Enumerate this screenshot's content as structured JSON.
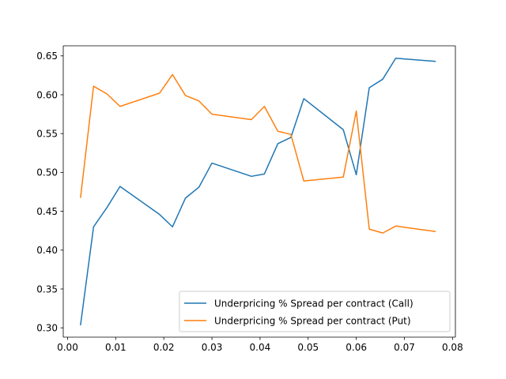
{
  "chart_data": {
    "type": "line",
    "title": "",
    "xlabel": "",
    "ylabel": "",
    "xlim": [
      -0.0009,
      0.0806
    ],
    "ylim": [
      0.288,
      0.663
    ],
    "xticks": [
      "0.00",
      "0.01",
      "0.02",
      "0.03",
      "0.04",
      "0.05",
      "0.06",
      "0.07",
      "0.08"
    ],
    "yticks": [
      "0.30",
      "0.35",
      "0.40",
      "0.45",
      "0.50",
      "0.55",
      "0.60",
      "0.65"
    ],
    "grid": false,
    "legend_position": "lower-right",
    "series": [
      {
        "name": "Underpricing % Spread per contract (Call)",
        "color": "#1f77b4",
        "x": [
          0.0027,
          0.0054,
          0.0082,
          0.0109,
          0.0191,
          0.0218,
          0.0245,
          0.0273,
          0.03,
          0.0382,
          0.0409,
          0.0437,
          0.0464,
          0.0491,
          0.0573,
          0.06,
          0.0627,
          0.0655,
          0.0682,
          0.0764
        ],
        "y": [
          0.304,
          0.43,
          0.455,
          0.482,
          0.446,
          0.43,
          0.467,
          0.481,
          0.512,
          0.495,
          0.498,
          0.537,
          0.545,
          0.595,
          0.555,
          0.497,
          0.609,
          0.62,
          0.647,
          0.643
        ]
      },
      {
        "name": "Underpricing % Spread per contract (Put)",
        "color": "#ff7f0e",
        "x": [
          0.0027,
          0.0054,
          0.0082,
          0.0109,
          0.0191,
          0.0218,
          0.0245,
          0.0273,
          0.03,
          0.0382,
          0.0409,
          0.0437,
          0.0464,
          0.0491,
          0.0573,
          0.06,
          0.0627,
          0.0655,
          0.0682,
          0.0764
        ],
        "y": [
          0.468,
          0.611,
          0.601,
          0.585,
          0.602,
          0.626,
          0.599,
          0.592,
          0.575,
          0.568,
          0.585,
          0.553,
          0.549,
          0.489,
          0.494,
          0.579,
          0.427,
          0.422,
          0.431,
          0.424
        ]
      }
    ]
  }
}
